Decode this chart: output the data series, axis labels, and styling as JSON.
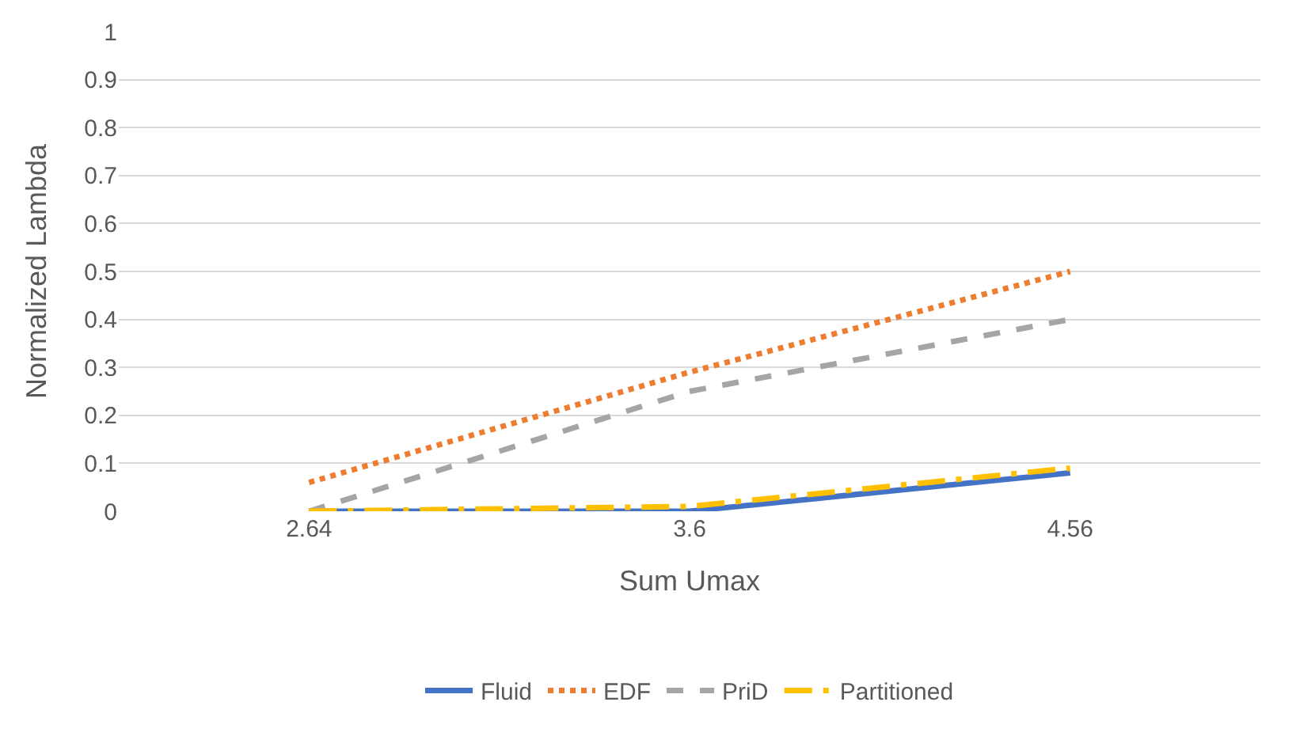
{
  "chart_data": {
    "type": "line",
    "xlabel": "Sum Umax",
    "ylabel": "Normalized Lambda",
    "categories": [
      "2.64",
      "3.6",
      "4.56"
    ],
    "series": [
      {
        "name": "Fluid",
        "color": "#4472c4",
        "values": [
          0,
          0,
          0.08
        ],
        "line_style": "solid"
      },
      {
        "name": "EDF",
        "color": "#ed7d31",
        "values": [
          0.06,
          0.29,
          0.5
        ],
        "line_style": "dotted"
      },
      {
        "name": "PriD",
        "color": "#a5a5a5",
        "values": [
          0,
          0.25,
          0.4
        ],
        "line_style": "dashed"
      },
      {
        "name": "Partitioned",
        "color": "#ffc000",
        "values": [
          0,
          0.01,
          0.09
        ],
        "line_style": "dashdot"
      }
    ],
    "ylim": [
      0,
      1
    ],
    "yticks": [
      0,
      0.1,
      0.2,
      0.3,
      0.4,
      0.5,
      0.6,
      0.7,
      0.8,
      0.9,
      1
    ],
    "grid": "y",
    "legend": "bottom",
    "marker": "none"
  }
}
